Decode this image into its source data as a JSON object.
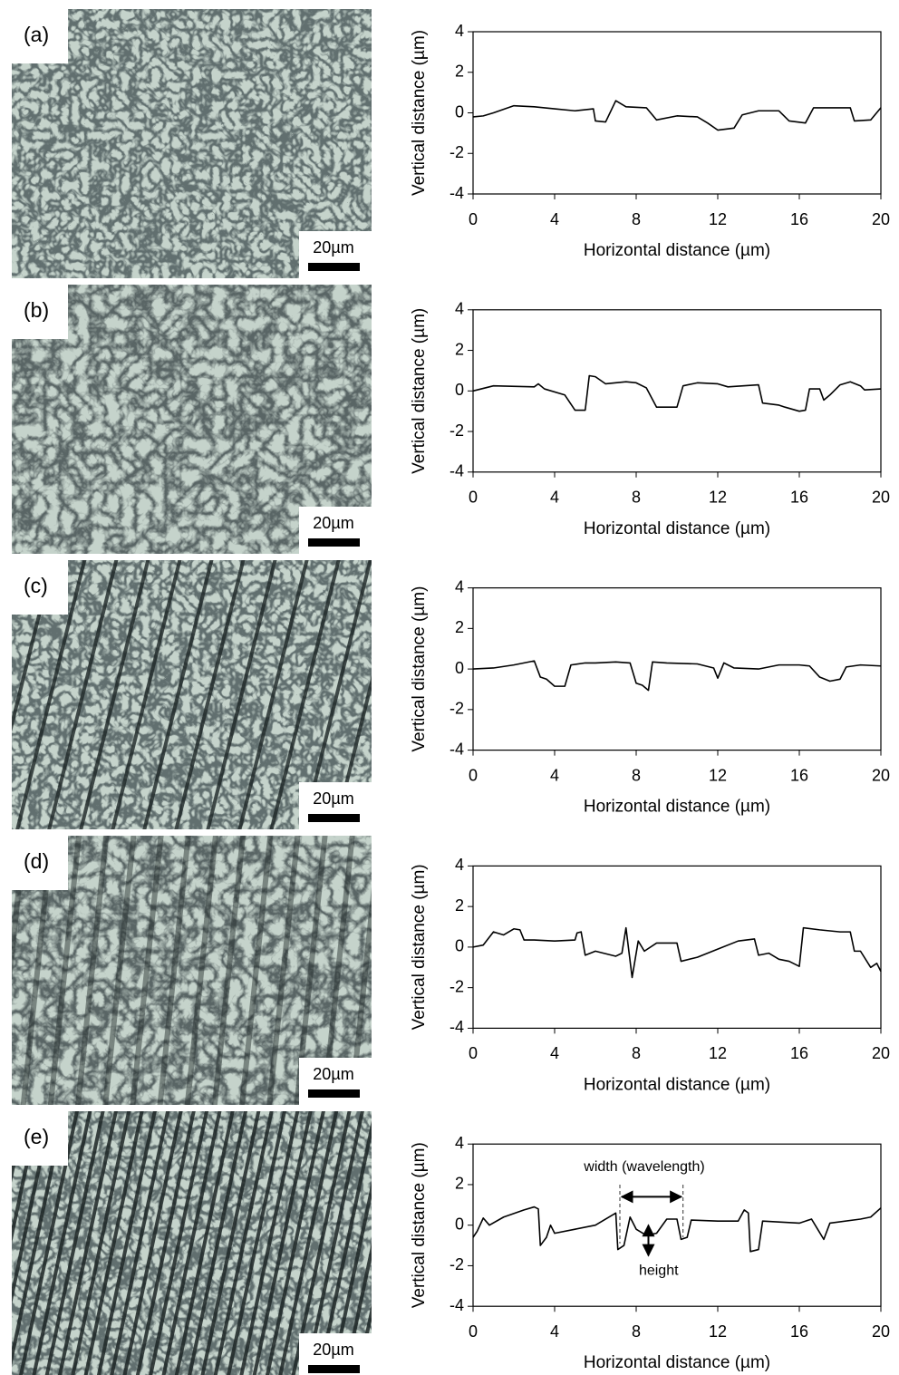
{
  "chart_data": [
    {
      "type": "line",
      "panel_label": "(a)",
      "scale_bar_label": "20µm",
      "xlabel": "Horizontal distance (µm)",
      "ylabel": "Vertical distance (µm)",
      "color": "#000000",
      "x": [
        0,
        0.5,
        1,
        2,
        3,
        4,
        5,
        5.9,
        6,
        6.5,
        7,
        7.5,
        8.5,
        9,
        10,
        11,
        11.5,
        12,
        12.8,
        13.2,
        14,
        15,
        15.5,
        16.3,
        16.7,
        18.5,
        18.7,
        19.5,
        20
      ],
      "values": [
        -0.2,
        -0.15,
        0,
        0.35,
        0.3,
        0.2,
        0.1,
        0.2,
        -0.4,
        -0.45,
        0.6,
        0.3,
        0.25,
        -0.35,
        -0.15,
        -0.2,
        -0.5,
        -0.85,
        -0.75,
        -0.1,
        0.1,
        0.1,
        -0.4,
        -0.5,
        0.25,
        0.25,
        -0.4,
        -0.35,
        0.25
      ],
      "xlim": [
        0,
        20
      ],
      "ylim": [
        -4,
        4
      ],
      "xticks": [
        0,
        4,
        8,
        12,
        16,
        20
      ],
      "yticks": [
        -4,
        -2,
        0,
        2,
        4
      ]
    },
    {
      "type": "line",
      "panel_label": "(b)",
      "scale_bar_label": "20µm",
      "xlabel": "Horizontal distance (µm)",
      "ylabel": "Vertical distance (µm)",
      "color": "#000000",
      "x": [
        0,
        1,
        3,
        3.2,
        3.5,
        4.5,
        5,
        5.5,
        5.7,
        6,
        6.5,
        7.5,
        8,
        8.5,
        9,
        10,
        10.3,
        11,
        12,
        12.5,
        14,
        14.2,
        15,
        15.3,
        16,
        16.3,
        16.5,
        17,
        17.2,
        17.5,
        18,
        18.5,
        19,
        19.2,
        20
      ],
      "values": [
        0,
        0.25,
        0.2,
        0.35,
        0.1,
        -0.2,
        -0.95,
        -0.95,
        0.75,
        0.7,
        0.35,
        0.45,
        0.4,
        0.15,
        -0.8,
        -0.8,
        0.25,
        0.4,
        0.35,
        0.2,
        0.3,
        -0.6,
        -0.7,
        -0.8,
        -1.0,
        -0.95,
        0.1,
        0.1,
        -0.45,
        -0.2,
        0.3,
        0.45,
        0.25,
        0.05,
        0.1
      ],
      "xlim": [
        0,
        20
      ],
      "ylim": [
        -4,
        4
      ],
      "xticks": [
        0,
        4,
        8,
        12,
        16,
        20
      ],
      "yticks": [
        -4,
        -2,
        0,
        2,
        4
      ]
    },
    {
      "type": "line",
      "panel_label": "(c)",
      "scale_bar_label": "20µm",
      "xlabel": "Horizontal distance (µm)",
      "ylabel": "Vertical distance (µm)",
      "color": "#000000",
      "x": [
        0,
        1,
        2,
        3,
        3.3,
        3.6,
        4,
        4.5,
        4.8,
        5.5,
        6,
        7,
        7.7,
        8,
        8.3,
        8.6,
        8.8,
        9.5,
        11,
        11.8,
        12,
        12.3,
        12.8,
        14,
        15,
        16,
        16.5,
        17,
        17.5,
        18,
        18.3,
        19,
        20
      ],
      "values": [
        0,
        0.05,
        0.2,
        0.4,
        -0.4,
        -0.5,
        -0.85,
        -0.85,
        0.2,
        0.3,
        0.3,
        0.35,
        0.3,
        -0.7,
        -0.8,
        -1.05,
        0.35,
        0.3,
        0.25,
        0.05,
        -0.45,
        0.3,
        0.05,
        0,
        0.2,
        0.2,
        0.15,
        -0.4,
        -0.6,
        -0.5,
        0.1,
        0.2,
        0.15
      ],
      "xlim": [
        0,
        20
      ],
      "ylim": [
        -4,
        4
      ],
      "xticks": [
        0,
        4,
        8,
        12,
        16,
        20
      ],
      "yticks": [
        -4,
        -2,
        0,
        2,
        4
      ]
    },
    {
      "type": "line",
      "panel_label": "(d)",
      "scale_bar_label": "20µm",
      "xlabel": "Horizontal distance (µm)",
      "ylabel": "Vertical distance (µm)",
      "color": "#000000",
      "x": [
        0,
        0.5,
        1,
        1.5,
        2,
        2.3,
        2.5,
        3,
        4,
        5,
        5.1,
        5.3,
        5.5,
        6,
        7,
        7.3,
        7.5,
        7.8,
        8.1,
        8.4,
        9,
        10,
        10.2,
        11,
        12,
        13,
        13.8,
        14,
        14.5,
        15,
        15.5,
        16,
        16.2,
        17,
        18,
        18.5,
        18.7,
        19,
        19.5,
        19.8,
        20
      ],
      "values": [
        0,
        0.1,
        0.75,
        0.6,
        0.9,
        0.85,
        0.35,
        0.35,
        0.3,
        0.35,
        0.7,
        0.75,
        -0.4,
        -0.2,
        -0.45,
        -0.3,
        0.95,
        -1.5,
        0.3,
        -0.2,
        0.2,
        0.2,
        -0.7,
        -0.5,
        -0.1,
        0.3,
        0.4,
        -0.4,
        -0.3,
        -0.6,
        -0.7,
        -0.95,
        0.95,
        0.85,
        0.75,
        0.75,
        -0.2,
        -0.2,
        -1.0,
        -0.8,
        -1.2
      ],
      "xlim": [
        0,
        20
      ],
      "ylim": [
        -4,
        4
      ],
      "xticks": [
        0,
        4,
        8,
        12,
        16,
        20
      ],
      "yticks": [
        -4,
        -2,
        0,
        2,
        4
      ]
    },
    {
      "type": "line",
      "panel_label": "(e)",
      "scale_bar_label": "20µm",
      "xlabel": "Horizontal distance (µm)",
      "ylabel": "Vertical distance (µm)",
      "color": "#000000",
      "annotations": [
        "width (wavelength)",
        "height"
      ],
      "x": [
        0,
        0.2,
        0.5,
        0.8,
        1.5,
        2.5,
        3,
        3.2,
        3.3,
        3.6,
        3.8,
        4,
        5,
        6,
        7,
        7.1,
        7.4,
        7.7,
        8,
        8.5,
        9,
        9.5,
        10,
        10.2,
        10.5,
        10.7,
        12,
        13,
        13.3,
        13.5,
        13.6,
        14,
        14.2,
        16,
        16.6,
        16.9,
        17.2,
        17.5,
        19,
        19.5,
        20
      ],
      "values": [
        -0.6,
        -0.3,
        0.35,
        0,
        0.4,
        0.75,
        0.9,
        0.8,
        -1.0,
        -0.6,
        0,
        -0.4,
        -0.2,
        0,
        0.6,
        -1.2,
        -1.0,
        0.4,
        -0.2,
        -0.5,
        -0.4,
        0.3,
        0.3,
        -0.7,
        -0.6,
        0.25,
        0.2,
        0.2,
        0.75,
        0.6,
        -1.3,
        -1.2,
        0.2,
        0.1,
        0.3,
        -0.2,
        -0.7,
        0.1,
        0.3,
        0.4,
        0.85
      ],
      "xlim": [
        0,
        20
      ],
      "ylim": [
        -4,
        4
      ],
      "xticks": [
        0,
        4,
        8,
        12,
        16,
        20
      ],
      "yticks": [
        -4,
        -2,
        0,
        2,
        4
      ]
    }
  ]
}
